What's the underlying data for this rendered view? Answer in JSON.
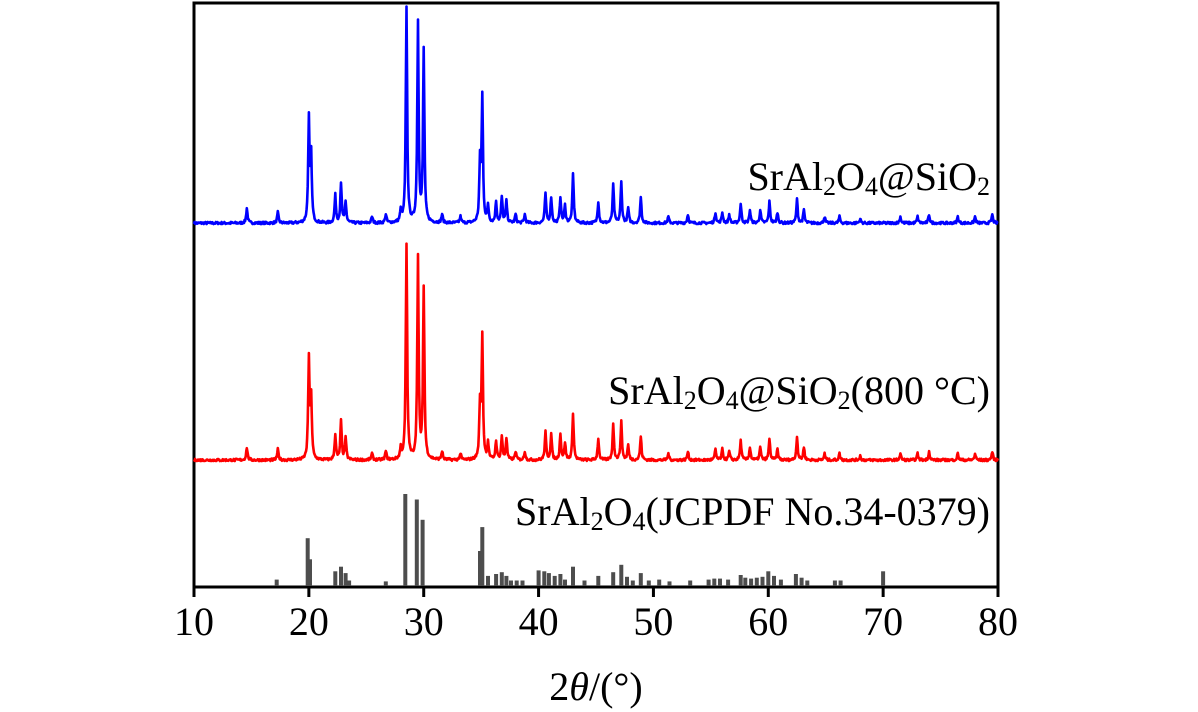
{
  "chart_data": {
    "type": "line",
    "xlabel_parts": [
      "2",
      "θ",
      "/(°)"
    ],
    "xlim": [
      10,
      80
    ],
    "x_ticks": [
      10,
      20,
      30,
      40,
      50,
      60,
      70,
      80
    ],
    "y_ticks_shown": false,
    "grid": false,
    "series": [
      {
        "name": "SrAl2O4@SiO2",
        "label_parts": [
          {
            "t": "SrAl",
            "sub": false
          },
          {
            "t": "2",
            "sub": true
          },
          {
            "t": "O",
            "sub": false
          },
          {
            "t": "4",
            "sub": true
          },
          {
            "t": "@SiO",
            "sub": false
          },
          {
            "t": "2",
            "sub": true
          }
        ],
        "color": "#0000ff",
        "peaks": [
          [
            14.6,
            0.07
          ],
          [
            17.3,
            0.05
          ],
          [
            20.0,
            0.48
          ],
          [
            20.2,
            0.3
          ],
          [
            22.3,
            0.13
          ],
          [
            22.8,
            0.18
          ],
          [
            23.2,
            0.1
          ],
          [
            25.5,
            0.03
          ],
          [
            26.7,
            0.04
          ],
          [
            28.0,
            0.05
          ],
          [
            28.5,
            1.0
          ],
          [
            29.5,
            0.93
          ],
          [
            30.0,
            0.8
          ],
          [
            31.6,
            0.04
          ],
          [
            33.2,
            0.03
          ],
          [
            34.9,
            0.27
          ],
          [
            35.1,
            0.58
          ],
          [
            35.6,
            0.08
          ],
          [
            36.3,
            0.1
          ],
          [
            36.8,
            0.12
          ],
          [
            37.2,
            0.1
          ],
          [
            38.0,
            0.04
          ],
          [
            38.8,
            0.04
          ],
          [
            40.6,
            0.14
          ],
          [
            41.1,
            0.12
          ],
          [
            41.9,
            0.12
          ],
          [
            42.3,
            0.08
          ],
          [
            43.0,
            0.23
          ],
          [
            45.2,
            0.1
          ],
          [
            46.5,
            0.18
          ],
          [
            47.2,
            0.19
          ],
          [
            47.8,
            0.07
          ],
          [
            48.9,
            0.12
          ],
          [
            51.3,
            0.03
          ],
          [
            53.0,
            0.04
          ],
          [
            55.4,
            0.05
          ],
          [
            56.0,
            0.05
          ],
          [
            56.6,
            0.04
          ],
          [
            57.6,
            0.09
          ],
          [
            58.4,
            0.06
          ],
          [
            59.3,
            0.06
          ],
          [
            60.1,
            0.1
          ],
          [
            60.8,
            0.05
          ],
          [
            62.5,
            0.11
          ],
          [
            63.1,
            0.06
          ],
          [
            64.9,
            0.03
          ],
          [
            66.2,
            0.03
          ],
          [
            68.0,
            0.02
          ],
          [
            71.5,
            0.03
          ],
          [
            73.0,
            0.03
          ],
          [
            74.0,
            0.04
          ],
          [
            76.5,
            0.03
          ],
          [
            78.0,
            0.03
          ],
          [
            79.5,
            0.04
          ]
        ]
      },
      {
        "name": "SrAl2O4@SiO2(800 °C)",
        "label_parts": [
          {
            "t": "SrAl",
            "sub": false
          },
          {
            "t": "2",
            "sub": true
          },
          {
            "t": "O",
            "sub": false
          },
          {
            "t": "4",
            "sub": true
          },
          {
            "t": "@SiO",
            "sub": false
          },
          {
            "t": "2",
            "sub": true
          },
          {
            "t": "(800 °C)",
            "sub": false
          }
        ],
        "color": "#ff0000",
        "peaks": [
          [
            14.6,
            0.06
          ],
          [
            17.3,
            0.05
          ],
          [
            20.0,
            0.47
          ],
          [
            20.2,
            0.28
          ],
          [
            22.3,
            0.12
          ],
          [
            22.8,
            0.18
          ],
          [
            23.2,
            0.1
          ],
          [
            25.5,
            0.03
          ],
          [
            26.7,
            0.04
          ],
          [
            28.0,
            0.05
          ],
          [
            28.5,
            1.0
          ],
          [
            29.5,
            0.94
          ],
          [
            30.0,
            0.8
          ],
          [
            31.6,
            0.04
          ],
          [
            33.2,
            0.03
          ],
          [
            34.9,
            0.25
          ],
          [
            35.1,
            0.57
          ],
          [
            35.6,
            0.08
          ],
          [
            36.3,
            0.09
          ],
          [
            36.8,
            0.11
          ],
          [
            37.2,
            0.1
          ],
          [
            38.0,
            0.04
          ],
          [
            38.8,
            0.04
          ],
          [
            40.6,
            0.13
          ],
          [
            41.1,
            0.12
          ],
          [
            41.9,
            0.12
          ],
          [
            42.3,
            0.08
          ],
          [
            43.0,
            0.22
          ],
          [
            45.2,
            0.1
          ],
          [
            46.5,
            0.17
          ],
          [
            47.2,
            0.18
          ],
          [
            47.8,
            0.07
          ],
          [
            48.9,
            0.11
          ],
          [
            51.3,
            0.03
          ],
          [
            53.0,
            0.04
          ],
          [
            55.4,
            0.05
          ],
          [
            56.0,
            0.05
          ],
          [
            56.6,
            0.04
          ],
          [
            57.6,
            0.09
          ],
          [
            58.4,
            0.06
          ],
          [
            59.3,
            0.06
          ],
          [
            60.1,
            0.1
          ],
          [
            60.8,
            0.05
          ],
          [
            62.5,
            0.11
          ],
          [
            63.1,
            0.06
          ],
          [
            64.9,
            0.03
          ],
          [
            66.2,
            0.03
          ],
          [
            68.0,
            0.02
          ],
          [
            71.5,
            0.03
          ],
          [
            73.0,
            0.03
          ],
          [
            74.0,
            0.04
          ],
          [
            76.5,
            0.03
          ],
          [
            78.0,
            0.03
          ],
          [
            79.5,
            0.04
          ]
        ]
      },
      {
        "name": "SrAl2O4(JCPDF No.34-0379)",
        "label_parts": [
          {
            "t": "SrAl",
            "sub": false
          },
          {
            "t": "2",
            "sub": true
          },
          {
            "t": "O",
            "sub": false
          },
          {
            "t": "4",
            "sub": true
          },
          {
            "t": "(JCPDF No.34-0379)",
            "sub": false
          }
        ],
        "color": "#4d4d4d",
        "type": "reference_bars",
        "peaks": [
          [
            17.2,
            0.07
          ],
          [
            19.9,
            0.52
          ],
          [
            20.1,
            0.29
          ],
          [
            22.3,
            0.16
          ],
          [
            22.8,
            0.21
          ],
          [
            23.2,
            0.14
          ],
          [
            23.5,
            0.06
          ],
          [
            26.7,
            0.05
          ],
          [
            28.4,
            1.0
          ],
          [
            29.4,
            0.94
          ],
          [
            29.9,
            0.72
          ],
          [
            34.9,
            0.38
          ],
          [
            35.1,
            0.64
          ],
          [
            35.6,
            0.11
          ],
          [
            36.3,
            0.13
          ],
          [
            36.8,
            0.15
          ],
          [
            37.2,
            0.11
          ],
          [
            37.6,
            0.06
          ],
          [
            38.1,
            0.06
          ],
          [
            38.6,
            0.06
          ],
          [
            40.0,
            0.17
          ],
          [
            40.5,
            0.16
          ],
          [
            40.9,
            0.14
          ],
          [
            41.4,
            0.11
          ],
          [
            41.9,
            0.13
          ],
          [
            42.3,
            0.07
          ],
          [
            43.0,
            0.21
          ],
          [
            44.0,
            0.06
          ],
          [
            45.2,
            0.11
          ],
          [
            46.5,
            0.15
          ],
          [
            47.2,
            0.23
          ],
          [
            47.7,
            0.1
          ],
          [
            48.2,
            0.06
          ],
          [
            48.9,
            0.14
          ],
          [
            49.6,
            0.06
          ],
          [
            50.5,
            0.07
          ],
          [
            51.4,
            0.05
          ],
          [
            53.2,
            0.06
          ],
          [
            54.8,
            0.07
          ],
          [
            55.3,
            0.08
          ],
          [
            55.8,
            0.08
          ],
          [
            56.5,
            0.07
          ],
          [
            57.6,
            0.12
          ],
          [
            58.0,
            0.09
          ],
          [
            58.5,
            0.08
          ],
          [
            59.0,
            0.09
          ],
          [
            59.5,
            0.1
          ],
          [
            60.0,
            0.16
          ],
          [
            60.5,
            0.11
          ],
          [
            61.1,
            0.07
          ],
          [
            62.4,
            0.13
          ],
          [
            62.9,
            0.09
          ],
          [
            63.4,
            0.06
          ],
          [
            65.8,
            0.06
          ],
          [
            66.3,
            0.06
          ],
          [
            70.0,
            0.16
          ]
        ]
      }
    ]
  }
}
